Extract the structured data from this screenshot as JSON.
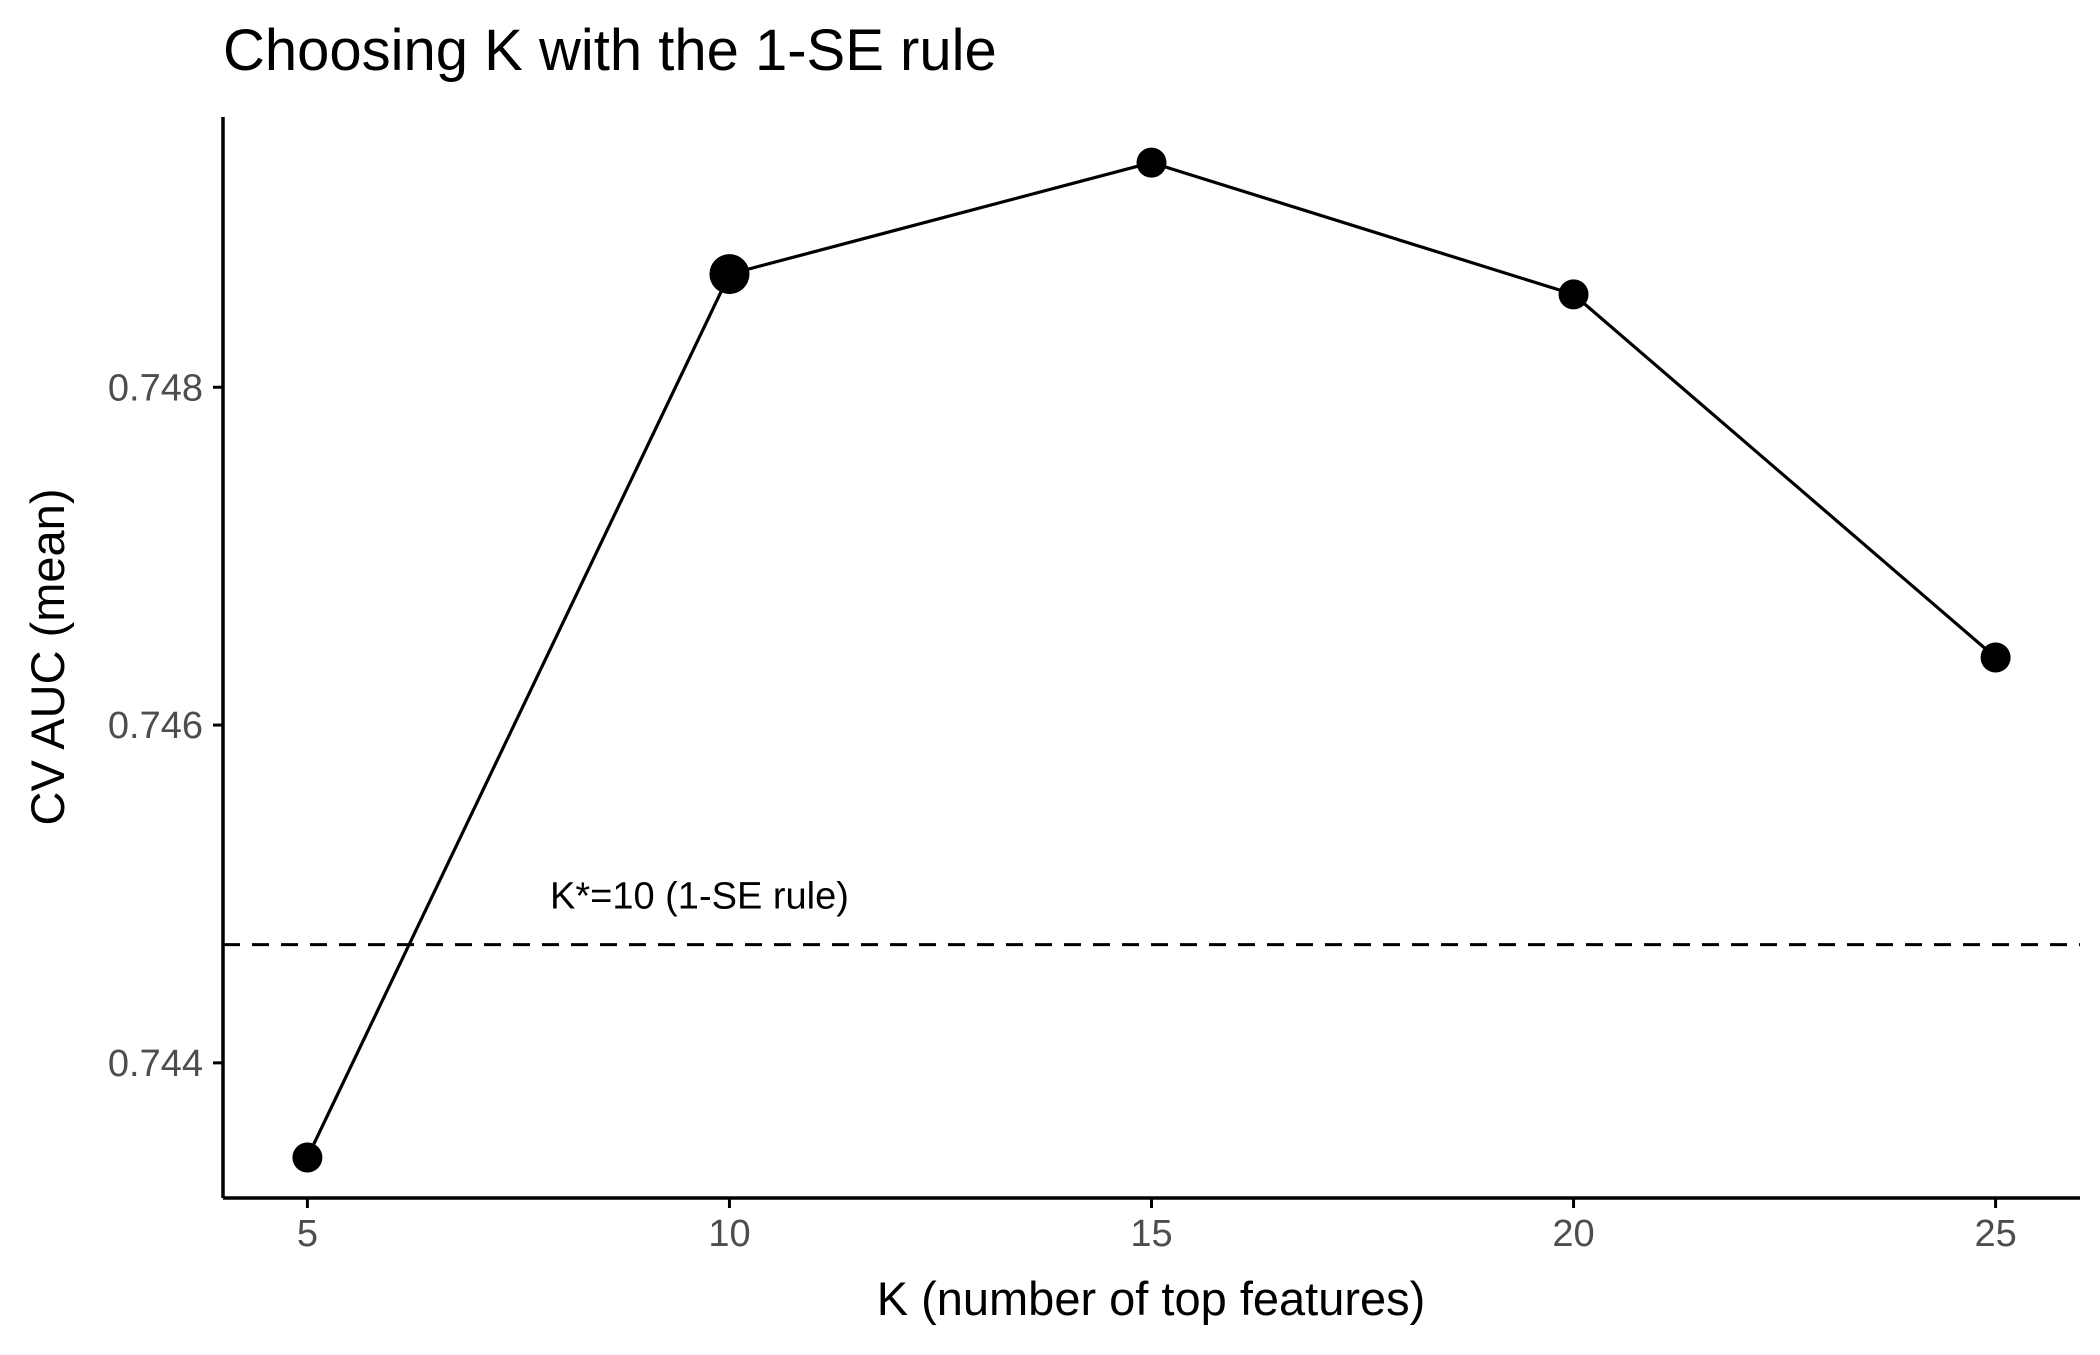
{
  "chart_data": {
    "type": "line",
    "title": "Choosing K with the 1-SE rule",
    "xlabel": "K (number of top features)",
    "ylabel": "CV AUC (mean)",
    "x": [
      5,
      10,
      15,
      20,
      25
    ],
    "series": [
      {
        "values": [
          0.74344,
          0.74867,
          0.74933,
          0.74855,
          0.7464
        ]
      }
    ],
    "selected_point": {
      "x": 10,
      "y": 0.74867
    },
    "xlim": [
      4,
      26
    ],
    "ylim": [
      0.7432,
      0.7496
    ],
    "x_ticks": [
      5,
      10,
      15,
      20,
      25
    ],
    "y_ticks": [
      0.744,
      0.746,
      0.748
    ],
    "x_tick_labels": [
      "5",
      "10",
      "15",
      "20",
      "25"
    ],
    "y_tick_labels": [
      "0.744",
      "0.746",
      "0.748"
    ],
    "reference_line": {
      "y": 0.7447,
      "style": "dashed"
    },
    "annotation": {
      "text": "K*=10 (1-SE rule)",
      "x": 10,
      "y": 0.745
    },
    "grid": false,
    "legend": "none",
    "colors": {
      "line": "#000000",
      "points": "#000000",
      "axis": "#000000",
      "tick_label": "#4d4d4d"
    }
  }
}
